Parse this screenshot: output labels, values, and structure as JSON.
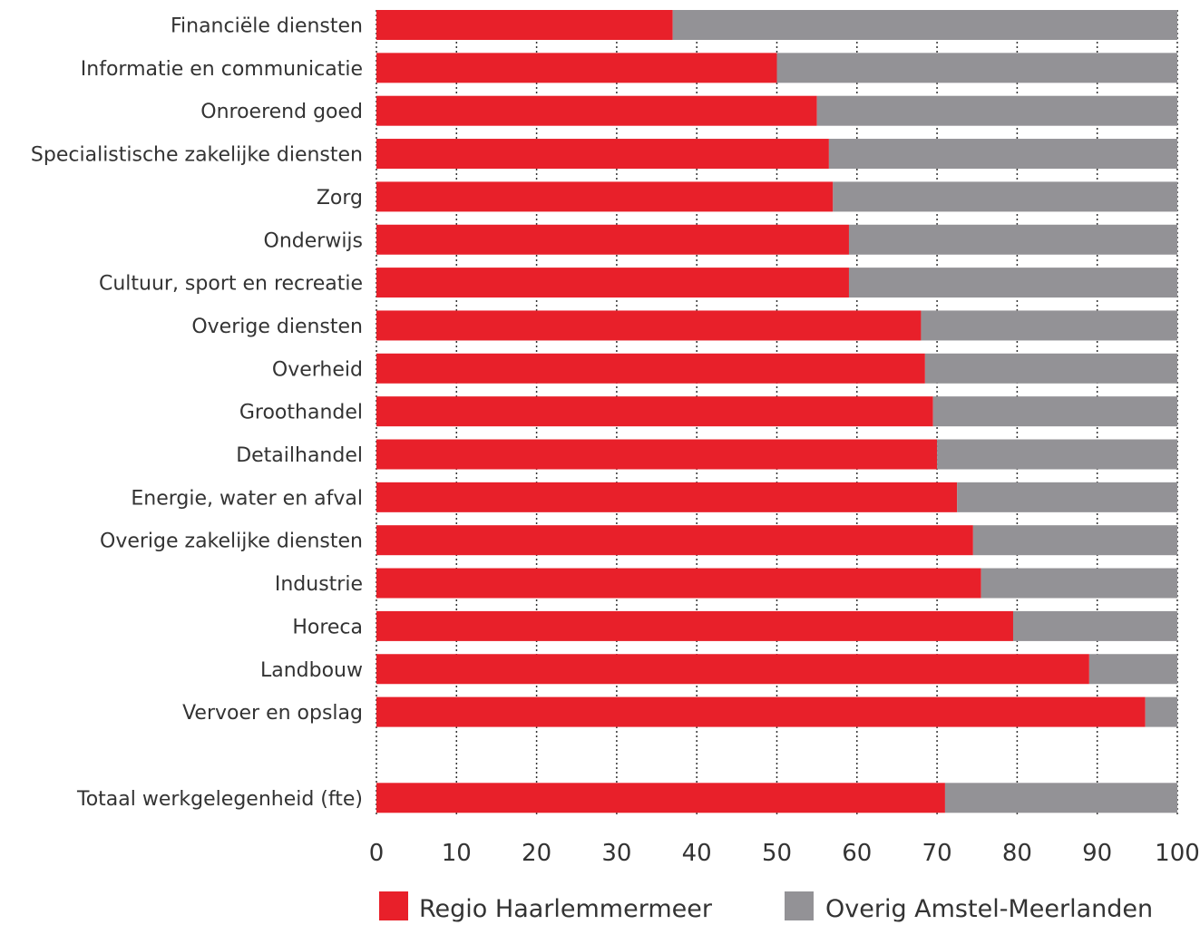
{
  "chart_data": {
    "type": "bar",
    "orientation": "horizontal",
    "stacked": true,
    "categories": [
      "Financiële diensten",
      "Informatie en communicatie",
      "Onroerend goed",
      "Specialistische zakelijke diensten",
      "Zorg",
      "Onderwijs",
      "Cultuur, sport en recreatie",
      "Overige diensten",
      "Overheid",
      "Groothandel",
      "Detailhandel",
      "Energie, water en afval",
      "Overige zakelijke diensten",
      "Industrie",
      "Horeca",
      "Landbouw",
      "Vervoer en opslag",
      "",
      "Totaal werkgelegenheid (fte)"
    ],
    "series": [
      {
        "name": "Regio Haarlemmermeer",
        "color": "#e8202a",
        "values": [
          37,
          50,
          55,
          56.5,
          57,
          59,
          59,
          68,
          68.5,
          69.5,
          70,
          72.5,
          74.5,
          75.5,
          79.5,
          89,
          96,
          null,
          71
        ]
      },
      {
        "name": "Overig Amstel-Meerlanden",
        "color": "#939296",
        "values": [
          63,
          50,
          45,
          43.5,
          43,
          41,
          41,
          32,
          31.5,
          30.5,
          30,
          27.5,
          25.5,
          24.5,
          20.5,
          11,
          4,
          null,
          29
        ]
      }
    ],
    "x_ticks": [
      "0",
      "10",
      "20",
      "30",
      "40",
      "50",
      "60",
      "70",
      "80",
      "90",
      "100"
    ],
    "xlim": [
      0,
      100
    ],
    "grid": "vertical dotted",
    "legend": "bottom",
    "title": "",
    "xlabel": "",
    "ylabel": ""
  }
}
